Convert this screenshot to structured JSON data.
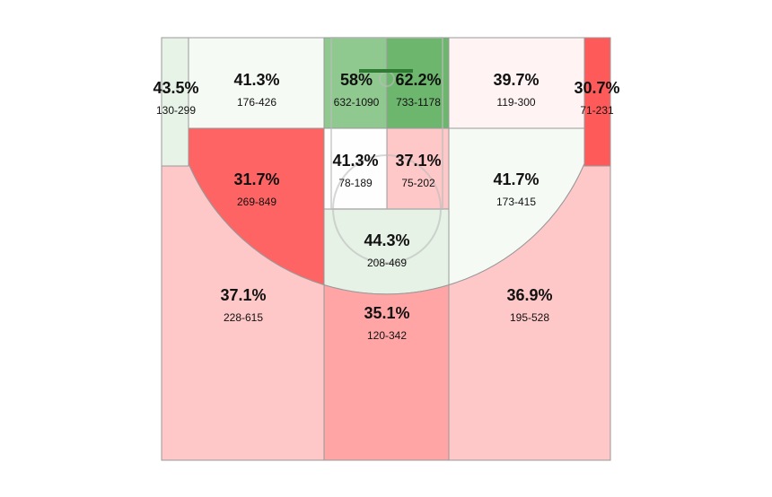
{
  "zones": [
    {
      "pct": "43.5%",
      "record": "130-299",
      "color": "#e8f3e8"
    },
    {
      "pct": "41.3%",
      "record": "176-426",
      "color": "#f5faf5"
    },
    {
      "pct": "58%",
      "record": "632-1090",
      "color": "#8fc98f"
    },
    {
      "pct": "62.2%",
      "record": "733-1178",
      "color": "#6db66d"
    },
    {
      "pct": "39.7%",
      "record": "119-300",
      "color": "#fff3f3"
    },
    {
      "pct": "30.7%",
      "record": "71-231",
      "color": "#ff5a5a"
    },
    {
      "pct": "31.7%",
      "record": "269-849",
      "color": "#ff6464"
    },
    {
      "pct": "41.3%",
      "record": "78-189",
      "color": "#fdfefd"
    },
    {
      "pct": "37.1%",
      "record": "75-202",
      "color": "#ffc8c8"
    },
    {
      "pct": "41.7%",
      "record": "173-415",
      "color": "#f5faf5"
    },
    {
      "pct": "44.3%",
      "record": "208-469",
      "color": "#e6f2e6"
    },
    {
      "pct": "37.1%",
      "record": "228-615",
      "color": "#ffc8c8"
    },
    {
      "pct": "35.1%",
      "record": "120-342",
      "color": "#ffa5a5"
    },
    {
      "pct": "36.9%",
      "record": "195-528",
      "color": "#ffc8c8"
    }
  ]
}
